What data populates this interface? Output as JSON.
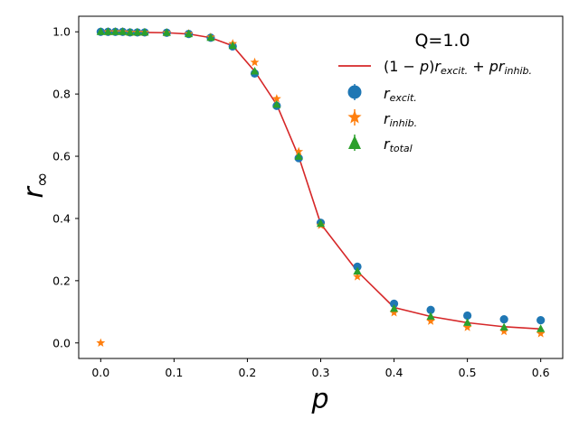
{
  "chart_data": {
    "type": "scatter",
    "title": "",
    "xlabel": "p",
    "ylabel_main": "r",
    "ylabel_sub": "∞",
    "xlim": [
      -0.03,
      0.63
    ],
    "ylim": [
      -0.05,
      1.05
    ],
    "xticks": [
      0.0,
      0.1,
      0.2,
      0.3,
      0.4,
      0.5,
      0.6
    ],
    "xtick_labels": [
      "0.0",
      "0.1",
      "0.2",
      "0.3",
      "0.4",
      "0.5",
      "0.6"
    ],
    "yticks": [
      0.0,
      0.2,
      0.4,
      0.6,
      0.8,
      1.0
    ],
    "ytick_labels": [
      "0.0",
      "0.2",
      "0.4",
      "0.6",
      "0.8",
      "1.0"
    ],
    "legend": {
      "title": "Q=1.0",
      "placement": "top-right",
      "entries": [
        {
          "key": "line",
          "prefix": "(1 − ",
          "p1": "p",
          "mid1": ")",
          "r1": "r",
          "s1": "excit.",
          "plus": " + ",
          "p2": "p",
          "r2": "r",
          "s2": "inhib."
        },
        {
          "key": "excit",
          "r": "r",
          "sub": "excit."
        },
        {
          "key": "inhib",
          "r": "r",
          "sub": "inhib."
        },
        {
          "key": "total",
          "r": "r",
          "sub": "total"
        }
      ]
    },
    "colors": {
      "line": "#d62728",
      "excit": "#1f77b4",
      "inhib": "#ff7f0e",
      "total": "#2ca02c"
    },
    "series": [
      {
        "name": "r_excit.",
        "marker": "circle",
        "x": [
          0.0,
          0.01,
          0.02,
          0.03,
          0.04,
          0.05,
          0.06,
          0.09,
          0.12,
          0.15,
          0.18,
          0.21,
          0.24,
          0.27,
          0.3,
          0.35,
          0.4,
          0.45,
          0.5,
          0.55,
          0.6
        ],
        "y": [
          1.0,
          1.0,
          1.0,
          1.0,
          0.998,
          0.998,
          0.998,
          0.997,
          0.993,
          0.981,
          0.953,
          0.866,
          0.762,
          0.594,
          0.386,
          0.245,
          0.126,
          0.106,
          0.088,
          0.076,
          0.073
        ]
      },
      {
        "name": "r_inhib.",
        "marker": "star",
        "x": [
          0.0,
          0.01,
          0.02,
          0.03,
          0.04,
          0.05,
          0.06,
          0.09,
          0.12,
          0.15,
          0.18,
          0.21,
          0.24,
          0.27,
          0.3,
          0.35,
          0.4,
          0.45,
          0.5,
          0.55,
          0.6
        ],
        "y": [
          0.0,
          1.0,
          1.0,
          1.0,
          0.998,
          0.998,
          0.998,
          0.997,
          0.994,
          0.983,
          0.962,
          0.902,
          0.785,
          0.615,
          0.378,
          0.213,
          0.097,
          0.07,
          0.05,
          0.037,
          0.03
        ]
      },
      {
        "name": "r_total",
        "marker": "triangle",
        "x": [
          0.0,
          0.01,
          0.02,
          0.03,
          0.04,
          0.05,
          0.06,
          0.09,
          0.12,
          0.15,
          0.18,
          0.21,
          0.24,
          0.27,
          0.3,
          0.35,
          0.4,
          0.45,
          0.5,
          0.55,
          0.6
        ],
        "y": [
          1.0,
          1.0,
          1.0,
          1.0,
          0.998,
          0.998,
          0.998,
          0.997,
          0.993,
          0.981,
          0.955,
          0.873,
          0.766,
          0.599,
          0.383,
          0.23,
          0.11,
          0.085,
          0.065,
          0.05,
          0.045
        ]
      },
      {
        "name": "(1-p)r_excit. + p r_inhib.",
        "marker": "line",
        "x": [
          0.0,
          0.01,
          0.02,
          0.03,
          0.04,
          0.05,
          0.06,
          0.09,
          0.12,
          0.15,
          0.18,
          0.21,
          0.24,
          0.27,
          0.3,
          0.35,
          0.4,
          0.45,
          0.5,
          0.55,
          0.6
        ],
        "y": [
          1.0,
          1.0,
          1.0,
          1.0,
          0.998,
          0.998,
          0.998,
          0.997,
          0.993,
          0.981,
          0.955,
          0.873,
          0.766,
          0.599,
          0.383,
          0.23,
          0.114,
          0.085,
          0.065,
          0.052,
          0.045
        ]
      }
    ]
  }
}
